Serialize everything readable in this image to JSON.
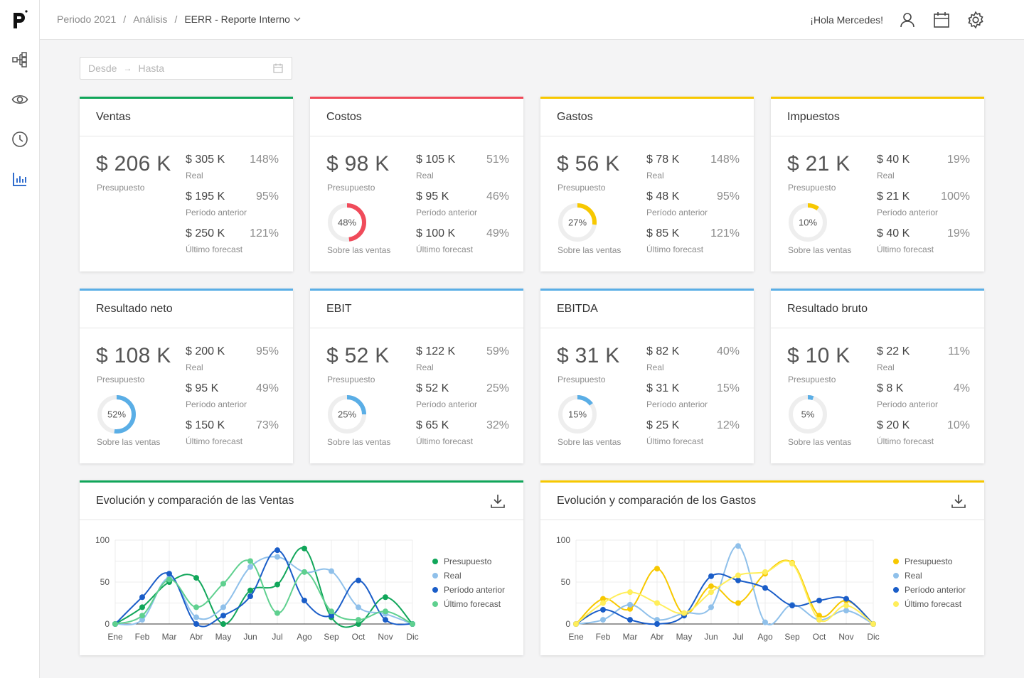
{
  "app": {
    "logo": "p"
  },
  "breadcrumb": {
    "period": "Periodo 2021",
    "section": "Análisis",
    "report": "EERR - Reporte Interno"
  },
  "header": {
    "greeting": "¡Hola Mercedes!"
  },
  "icons": {
    "user": "user-icon",
    "calendar": "calendar-icon",
    "settings": "gear-icon"
  },
  "sidebar": {
    "items": [
      {
        "icon": "hierarchy-icon"
      },
      {
        "icon": "eye-icon"
      },
      {
        "icon": "clock-icon"
      },
      {
        "icon": "bar-chart-icon"
      }
    ]
  },
  "filters": {
    "from": "Desde",
    "to": "Hasta"
  },
  "colors": {
    "green": "#11a65a",
    "red": "#f04b5a",
    "yellow": "#f7c800",
    "blue": "#5aaee6",
    "track": "#eeeeee"
  },
  "cards": [
    {
      "title": "Ventas",
      "color": "#11a65a",
      "budget": "$ 206 K",
      "budget_label": "Presupuesto",
      "donut": null,
      "donut_label": "",
      "metrics": [
        {
          "value": "$ 305 K",
          "label": "Real",
          "pct": "148%"
        },
        {
          "value": "$ 195 K",
          "label": "Período anterior",
          "pct": "95%"
        },
        {
          "value": "$ 250 K",
          "label": "Último forecast",
          "pct": "121%"
        }
      ]
    },
    {
      "title": "Costos",
      "color": "#f04b5a",
      "budget": "$ 98 K",
      "budget_label": "Presupuesto",
      "donut": 48,
      "donut_text": "48%",
      "donut_label": "Sobre las ventas",
      "metrics": [
        {
          "value": "$ 105 K",
          "label": "Real",
          "pct": "51%"
        },
        {
          "value": "$ 95 K",
          "label": "Período anterior",
          "pct": "46%"
        },
        {
          "value": "$ 100 K",
          "label": "Último forecast",
          "pct": "49%"
        }
      ]
    },
    {
      "title": "Gastos",
      "color": "#f7c800",
      "budget": "$ 56 K",
      "budget_label": "Presupuesto",
      "donut": 27,
      "donut_text": "27%",
      "donut_label": "Sobre las ventas",
      "metrics": [
        {
          "value": "$ 78 K",
          "label": "Real",
          "pct": "148%"
        },
        {
          "value": "$ 48 K",
          "label": "Período anterior",
          "pct": "95%"
        },
        {
          "value": "$ 85 K",
          "label": "Último forecast",
          "pct": "121%"
        }
      ]
    },
    {
      "title": "Impuestos",
      "color": "#f7c800",
      "budget": "$ 21 K",
      "budget_label": "Presupuesto",
      "donut": 10,
      "donut_text": "10%",
      "donut_label": "Sobre las ventas",
      "metrics": [
        {
          "value": "$ 40 K",
          "label": "Real",
          "pct": "19%"
        },
        {
          "value": "$ 21 K",
          "label": "Período anterior",
          "pct": "100%"
        },
        {
          "value": "$ 40 K",
          "label": "Último forecast",
          "pct": "19%"
        }
      ]
    },
    {
      "title": "Resultado neto",
      "color": "#5aaee6",
      "budget": "$ 108 K",
      "budget_label": "Presupuesto",
      "donut": 52,
      "donut_text": "52%",
      "donut_label": "Sobre las ventas",
      "metrics": [
        {
          "value": "$ 200 K",
          "label": "Real",
          "pct": "95%"
        },
        {
          "value": "$ 95 K",
          "label": "Período anterior",
          "pct": "49%"
        },
        {
          "value": "$ 150 K",
          "label": "Último forecast",
          "pct": "73%"
        }
      ]
    },
    {
      "title": "EBIT",
      "color": "#5aaee6",
      "budget": "$ 52 K",
      "budget_label": "Presupuesto",
      "donut": 25,
      "donut_text": "25%",
      "donut_label": "Sobre las ventas",
      "metrics": [
        {
          "value": "$ 122 K",
          "label": "Real",
          "pct": "59%"
        },
        {
          "value": "$ 52 K",
          "label": "Período anterior",
          "pct": "25%"
        },
        {
          "value": "$ 65 K",
          "label": "Último forecast",
          "pct": "32%"
        }
      ]
    },
    {
      "title": "EBITDA",
      "color": "#5aaee6",
      "budget": "$ 31 K",
      "budget_label": "Presupuesto",
      "donut": 15,
      "donut_text": "15%",
      "donut_label": "Sobre las ventas",
      "metrics": [
        {
          "value": "$ 82 K",
          "label": "Real",
          "pct": "40%"
        },
        {
          "value": "$ 31 K",
          "label": "Período anterior",
          "pct": "15%"
        },
        {
          "value": "$ 25 K",
          "label": "Último forecast",
          "pct": "12%"
        }
      ]
    },
    {
      "title": "Resultado bruto",
      "color": "#5aaee6",
      "budget": "$ 10 K",
      "budget_label": "Presupuesto",
      "donut": 5,
      "donut_text": "5%",
      "donut_label": "Sobre las ventas",
      "metrics": [
        {
          "value": "$ 22 K",
          "label": "Real",
          "pct": "11%"
        },
        {
          "value": "$ 8 K",
          "label": "Período anterior",
          "pct": "4%"
        },
        {
          "value": "$ 20 K",
          "label": "Último forecast",
          "pct": "10%"
        }
      ]
    }
  ],
  "chart_data": [
    {
      "type": "line",
      "title": "Evolución y comparación de las Ventas",
      "accent": "#11a65a",
      "categories": [
        "Ene",
        "Feb",
        "Mar",
        "Abr",
        "May",
        "Jun",
        "Jul",
        "Ago",
        "Sep",
        "Oct",
        "Nov",
        "Dic"
      ],
      "ylim": [
        0,
        100
      ],
      "yticks": [
        0,
        50,
        100
      ],
      "grid": true,
      "legend": "right",
      "series": [
        {
          "name": "Presupuesto",
          "color": "#11a65a",
          "values": [
            0,
            20,
            50,
            55,
            0,
            40,
            47,
            90,
            8,
            0,
            32,
            0
          ]
        },
        {
          "name": "Real",
          "color": "#8fc0ea",
          "values": [
            0,
            5,
            55,
            8,
            20,
            68,
            80,
            62,
            63,
            20,
            12,
            0
          ]
        },
        {
          "name": "Período anterior",
          "color": "#1a5dc8",
          "values": [
            0,
            32,
            60,
            0,
            10,
            33,
            88,
            28,
            10,
            52,
            5,
            0
          ]
        },
        {
          "name": "Último forecast",
          "color": "#5fd08f",
          "values": [
            0,
            10,
            53,
            20,
            48,
            75,
            13,
            62,
            15,
            5,
            15,
            0
          ]
        }
      ]
    },
    {
      "type": "line",
      "title": "Evolución y comparación de los Gastos",
      "accent": "#f7c800",
      "categories": [
        "Ene",
        "Feb",
        "Mar",
        "Abr",
        "May",
        "Jun",
        "Jul",
        "Ago",
        "Sep",
        "Oct",
        "Nov",
        "Dic"
      ],
      "ylim": [
        0,
        100
      ],
      "yticks": [
        0,
        50,
        100
      ],
      "grid": true,
      "legend": "right",
      "series": [
        {
          "name": "Presupuesto",
          "color": "#f7c800",
          "values": [
            0,
            30,
            18,
            66,
            12,
            45,
            25,
            60,
            73,
            10,
            28,
            0
          ]
        },
        {
          "name": "Real",
          "color": "#8fc0ea",
          "values": [
            0,
            5,
            23,
            5,
            13,
            20,
            93,
            2,
            23,
            5,
            16,
            0
          ]
        },
        {
          "name": "Período anterior",
          "color": "#1a5dc8",
          "values": [
            0,
            17,
            5,
            0,
            10,
            57,
            52,
            43,
            22,
            28,
            30,
            0
          ]
        },
        {
          "name": "Último forecast",
          "color": "#ffee5a",
          "values": [
            0,
            25,
            38,
            25,
            13,
            38,
            58,
            62,
            72,
            5,
            22,
            0
          ]
        }
      ]
    }
  ]
}
